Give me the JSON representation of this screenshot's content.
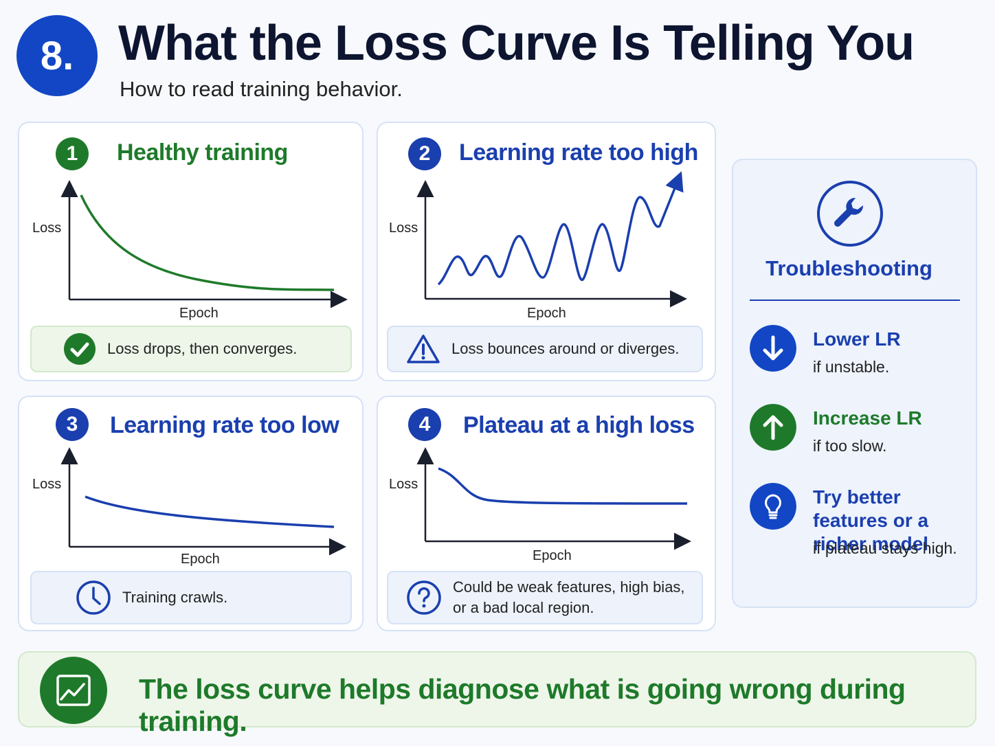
{
  "header": {
    "badge": "8.",
    "title": "What the Loss Curve Is Telling You",
    "subtitle": "How to read training behavior."
  },
  "panels": [
    {
      "number": "1",
      "title": "Healthy training",
      "y_label": "Loss",
      "x_label": "Epoch",
      "note": "Loss drops, then converges."
    },
    {
      "number": "2",
      "title": "Learning rate too high",
      "y_label": "Loss",
      "x_label": "Epoch",
      "note": "Loss bounces around or diverges."
    },
    {
      "number": "3",
      "title": "Learning rate too low",
      "y_label": "Loss",
      "x_label": "Epoch",
      "note": "Training crawls."
    },
    {
      "number": "4",
      "title": "Plateau at a high loss",
      "y_label": "Loss",
      "x_label": "Epoch",
      "note": "Could be weak features, high bias, or a bad local region."
    }
  ],
  "troubleshooting": {
    "title": "Troubleshooting",
    "items": [
      {
        "heading": "Lower LR",
        "detail": "if unstable."
      },
      {
        "heading": "Increase LR",
        "detail": "if too slow."
      },
      {
        "heading": "Try better features or a richer model",
        "detail": "if plateau stays high."
      }
    ]
  },
  "footer": {
    "text": "The loss curve helps diagnose what is going wrong during training."
  }
}
